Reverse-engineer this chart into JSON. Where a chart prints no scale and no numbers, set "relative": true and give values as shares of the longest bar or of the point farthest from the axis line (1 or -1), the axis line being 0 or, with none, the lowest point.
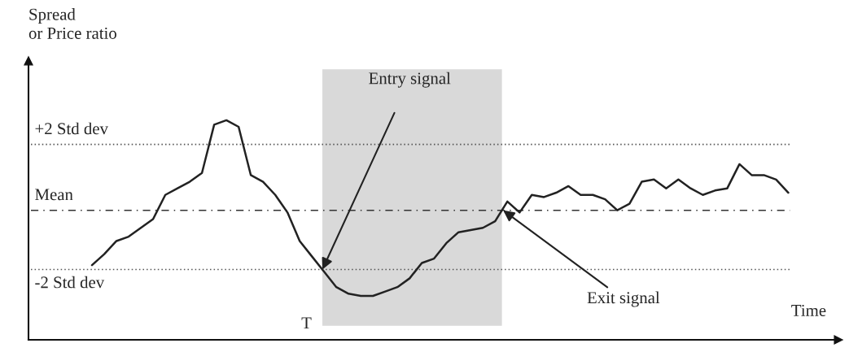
{
  "chart_data": {
    "type": "line",
    "relative": true,
    "xlabel": "Time",
    "ylabel": "Spread\nor Price ratio",
    "categories": [
      null,
      null,
      null,
      null,
      null,
      null,
      null,
      null,
      null,
      null,
      null,
      null,
      null,
      null,
      null,
      null,
      null,
      null,
      null,
      null,
      null,
      null,
      null,
      null,
      null,
      null,
      null,
      null,
      null,
      null,
      null,
      null,
      null,
      null,
      null,
      null,
      null,
      null,
      null,
      null,
      null,
      null,
      null,
      null,
      null,
      null,
      null,
      null,
      null,
      null,
      null,
      null,
      null,
      null,
      null,
      null,
      null,
      null,
      null,
      null,
      null,
      null,
      null,
      null,
      null,
      null,
      null
    ],
    "series": [
      {
        "color": "#222222",
        "values": [
          null,
          null,
          null,
          null,
          null,
          0.34,
          0.39,
          0.45,
          0.47,
          0.51,
          0.55,
          0.66,
          0.69,
          0.72,
          0.76,
          0.98,
          1,
          0.97,
          0.75,
          0.72,
          0.66,
          0.58,
          0.45,
          0.38,
          0.31,
          0.24,
          0.21,
          0.2,
          0.2,
          0.22,
          0.24,
          0.28,
          0.35,
          0.37,
          0.44,
          0.49,
          0.5,
          0.51,
          0.54,
          0.63,
          0.58,
          0.66,
          0.65,
          0.67,
          0.7,
          0.66,
          0.66,
          0.64,
          0.59,
          0.62,
          0.72,
          0.73,
          0.69,
          0.73,
          0.69,
          0.66,
          0.68,
          0.69,
          0.8,
          0.75,
          0.75,
          0.73,
          0.67,
          null,
          null,
          null,
          null
        ]
      }
    ],
    "ref_lines": [
      {
        "axis": "y",
        "value": 0.89,
        "label": "+2 Std dev",
        "line_style": "dotted",
        "color": "#555555"
      },
      {
        "axis": "y",
        "value": 0.59,
        "label": "Mean",
        "line_style": "dashed",
        "color": "#333333"
      },
      {
        "axis": "y",
        "value": 0.32,
        "label": "-2 Std dev",
        "line_style": "dotted",
        "color": "#555555"
      }
    ],
    "annotations": [
      "Entry signal",
      "Exit signal",
      "T"
    ],
    "marker": "none",
    "line_style": "solid"
  }
}
